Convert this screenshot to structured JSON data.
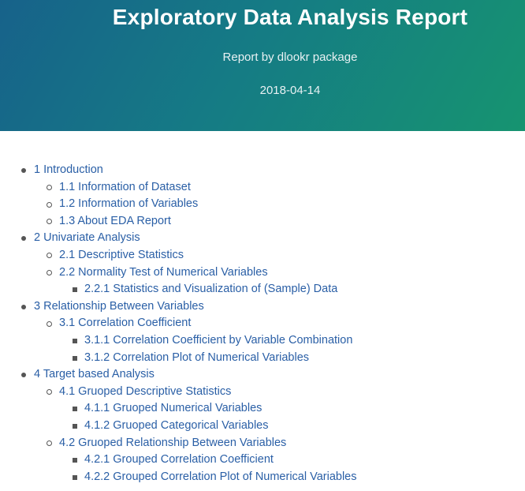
{
  "header": {
    "title": "Exploratory Data Analysis Report",
    "subtitle": "Report by dlookr package",
    "date": "2018-04-14",
    "gradient_colors": [
      "#17628a",
      "#169470"
    ]
  },
  "toc": {
    "link_color": "#2a5fa6",
    "items": [
      {
        "level": 1,
        "label": "1 Introduction"
      },
      {
        "level": 2,
        "label": "1.1 Information of Dataset"
      },
      {
        "level": 2,
        "label": "1.2 Information of Variables"
      },
      {
        "level": 2,
        "label": "1.3 About EDA Report"
      },
      {
        "level": 1,
        "label": "2 Univariate Analysis"
      },
      {
        "level": 2,
        "label": "2.1 Descriptive Statistics"
      },
      {
        "level": 2,
        "label": "2.2 Normality Test of Numerical Variables"
      },
      {
        "level": 3,
        "label": "2.2.1 Statistics and Visualization of (Sample) Data"
      },
      {
        "level": 1,
        "label": "3 Relationship Between Variables"
      },
      {
        "level": 2,
        "label": "3.1 Correlation Coefficient"
      },
      {
        "level": 3,
        "label": "3.1.1 Correlation Coefficient by Variable Combination"
      },
      {
        "level": 3,
        "label": "3.1.2 Correlation Plot of Numerical Variables"
      },
      {
        "level": 1,
        "label": "4 Target based Analysis"
      },
      {
        "level": 2,
        "label": "4.1 Gruoped Descriptive Statistics"
      },
      {
        "level": 3,
        "label": "4.1.1 Gruoped Numerical Variables"
      },
      {
        "level": 3,
        "label": "4.1.2 Gruoped Categorical Variables"
      },
      {
        "level": 2,
        "label": "4.2 Gruoped Relationship Between Variables"
      },
      {
        "level": 3,
        "label": "4.2.1 Grouped Correlation Coefficient"
      },
      {
        "level": 3,
        "label": "4.2.2 Grouped Correlation Plot of Numerical Variables"
      }
    ]
  }
}
